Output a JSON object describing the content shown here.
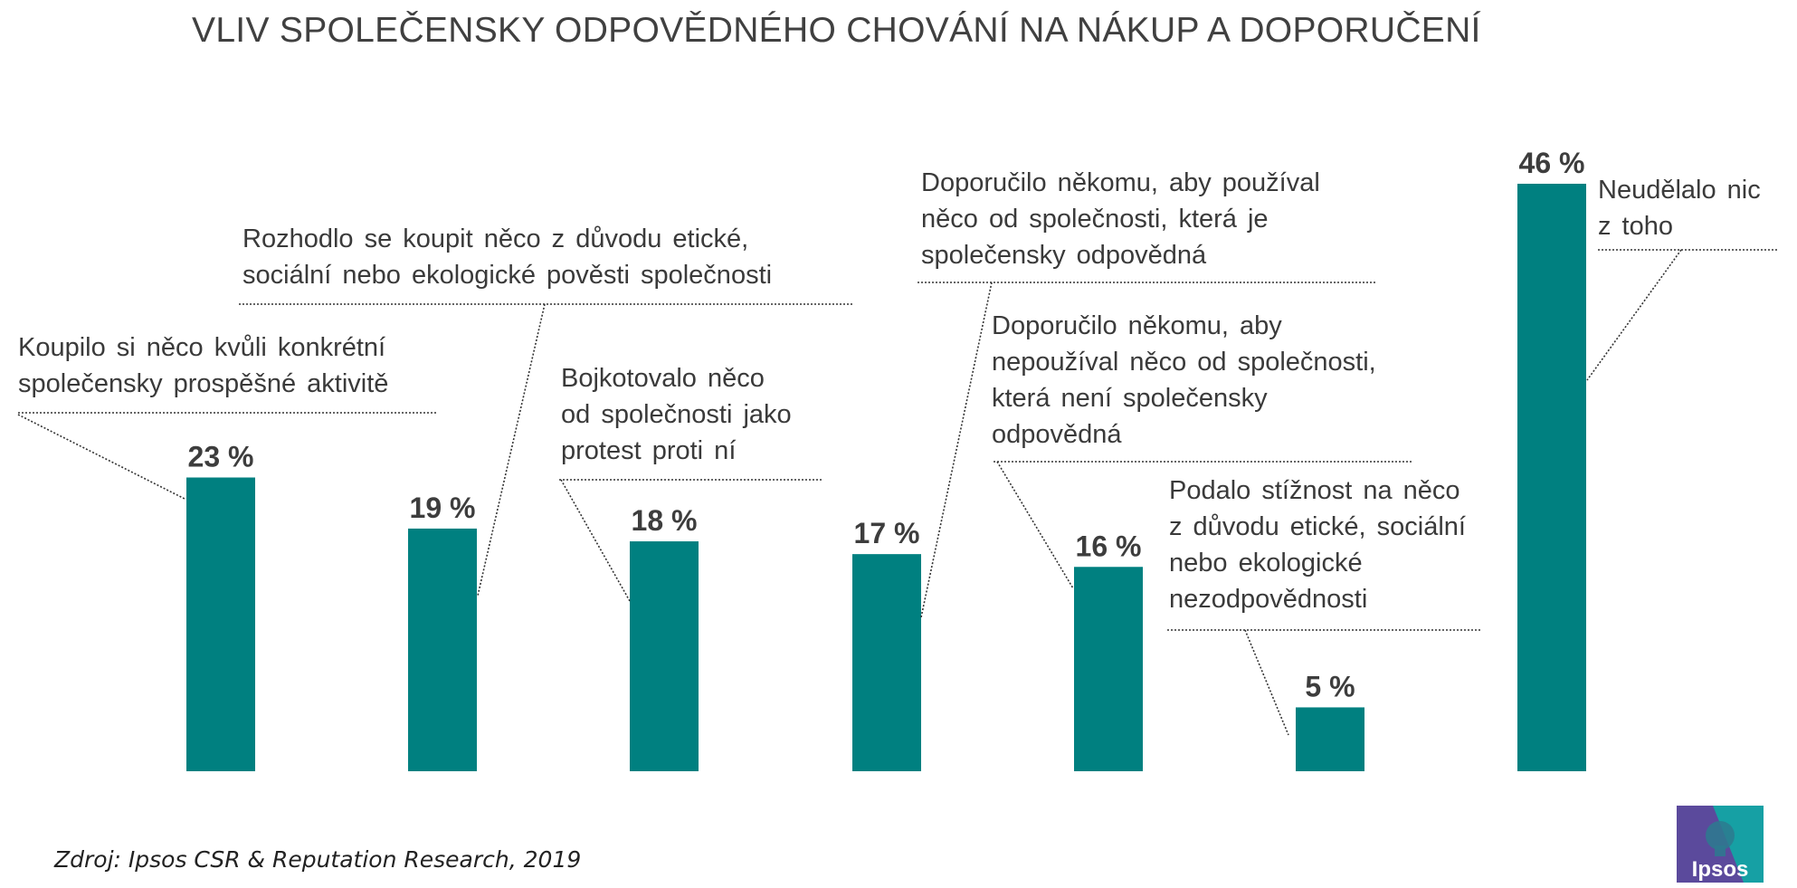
{
  "title": "VLIV SPOLEČENSKY ODPOVĚDNÉHO CHOVÁNÍ NA NÁKUP A DOPORUČENÍ",
  "source": "Zdroj: Ipsos CSR & Reputation Research, 2019",
  "logo_text": "Ipsos",
  "colors": {
    "bar": "#008080",
    "text": "#3a3a3a",
    "logo_purple": "#5b4a9c",
    "logo_teal": "#16a0a4"
  },
  "chart_data": {
    "type": "bar",
    "categories": [
      [
        "Koupilo si něco kvůli konkrétní",
        "společensky prospěšné aktivitě"
      ],
      [
        "Rozhodlo se koupit něco z důvodu etické,",
        "sociální nebo ekologické pověsti společnosti"
      ],
      [
        "Bojkotovalo něco",
        "od společnosti jako",
        "protest proti ní"
      ],
      [
        "Doporučilo někomu, aby používal",
        "něco od společnosti, která je",
        "společensky odpovědná"
      ],
      [
        "Doporučilo někomu, aby",
        "nepoužíval něco od společnosti,",
        "která není společensky",
        "odpovědná"
      ],
      [
        "Podalo stížnost na něco",
        "z důvodu etické, sociální",
        "nebo ekologické",
        "nezodpovědnosti"
      ],
      [
        "Neudělalo nic",
        "z toho"
      ]
    ],
    "values": [
      23,
      19,
      18,
      17,
      16,
      5,
      46
    ],
    "value_labels": [
      "23 %",
      "19 %",
      "18 %",
      "17 %",
      "16 %",
      "5 %",
      "46 %"
    ],
    "ylim": [
      0,
      46
    ],
    "grid": false,
    "legend": "none"
  }
}
